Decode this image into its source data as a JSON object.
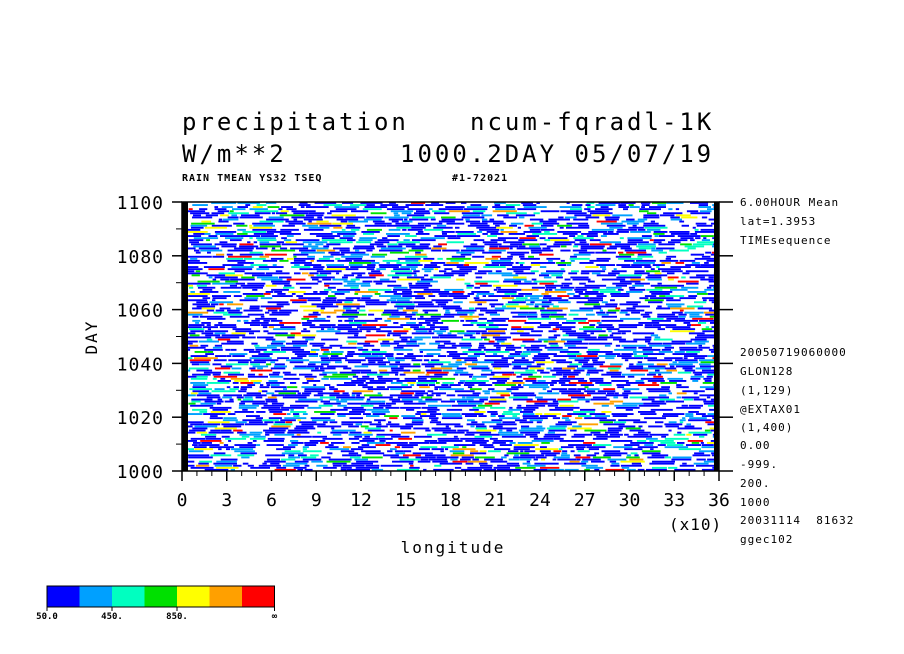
{
  "header": {
    "title_left_1": "precipitation",
    "title_right_1": "ncum-fqradl-1K",
    "title_left_2": "W/m**2",
    "title_right_2": "1000.2DAY 05/07/19",
    "subtitle_left": "RAIN TMEAN YS32 TSEQ",
    "subtitle_right": "#1-72021"
  },
  "side_info": [
    "6.00HOUR Mean",
    "lat=1.3953",
    "TIMEsequence",
    "20050719060000",
    "GLON128",
    "(1,129)",
    "@EXTAX01",
    "(1,400)",
    "0.00",
    "-999.",
    "200.",
    "1000",
    "20031114  81632",
    "ggec102"
  ],
  "colors": {
    "levels": [
      "#0000ff",
      "#00a0ff",
      "#00ffc0",
      "#00e000",
      "#ffff00",
      "#ffa000",
      "#ff0000"
    ]
  },
  "chart_data": {
    "type": "heatmap",
    "xlabel": "longitude",
    "ylabel": "DAY",
    "xlim": [
      0,
      36
    ],
    "ylim": [
      1000,
      1100
    ],
    "x_ticks": [
      "0",
      "3",
      "6",
      "9",
      "12",
      "15",
      "18",
      "21",
      "24",
      "27",
      "30",
      "33",
      "36"
    ],
    "x_multiplier": "(x10)",
    "y_ticks": [
      "1000",
      "1020",
      "1040",
      "1060",
      "1080",
      "1100"
    ],
    "colorbar": {
      "labels": [
        "50.0",
        "450.",
        "850.",
        "∞"
      ],
      "colors": [
        "#0000ff",
        "#00a0ff",
        "#00ffc0",
        "#00e000",
        "#ffff00",
        "#ffa000",
        "#ff0000"
      ]
    }
  }
}
